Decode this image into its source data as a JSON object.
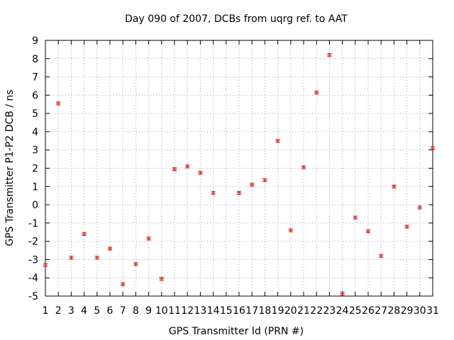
{
  "chart_data": {
    "type": "scatter",
    "title": "Day 090 of 2007, DCBs from uqrg ref. to AAT",
    "xlabel": "GPS Transmitter Id (PRN #)",
    "ylabel": "GPS Transmitter P1-P2 DCB / ns",
    "xlim": [
      1,
      31
    ],
    "ylim": [
      -5,
      9
    ],
    "x_ticks": [
      1,
      2,
      3,
      4,
      5,
      6,
      7,
      8,
      9,
      10,
      11,
      12,
      13,
      14,
      15,
      16,
      17,
      18,
      19,
      20,
      21,
      22,
      23,
      24,
      25,
      26,
      27,
      28,
      29,
      30,
      31
    ],
    "y_ticks": [
      -5,
      -4,
      -3,
      -2,
      -1,
      0,
      1,
      2,
      3,
      4,
      5,
      6,
      7,
      8,
      9
    ],
    "marker_color": "#cc0000",
    "error_bar": 0.08,
    "series": [
      {
        "name": "DCB",
        "points": [
          {
            "x": 1,
            "y": -3.3
          },
          {
            "x": 2,
            "y": 5.55
          },
          {
            "x": 3,
            "y": -2.9
          },
          {
            "x": 4,
            "y": -1.6
          },
          {
            "x": 5,
            "y": -2.9
          },
          {
            "x": 6,
            "y": -2.4
          },
          {
            "x": 7,
            "y": -4.35
          },
          {
            "x": 8,
            "y": -3.25
          },
          {
            "x": 9,
            "y": -1.85
          },
          {
            "x": 10,
            "y": -4.05
          },
          {
            "x": 11,
            "y": 1.95
          },
          {
            "x": 12,
            "y": 2.1
          },
          {
            "x": 13,
            "y": 1.75
          },
          {
            "x": 14,
            "y": 0.65
          },
          {
            "x": 16,
            "y": 0.65
          },
          {
            "x": 17,
            "y": 1.1
          },
          {
            "x": 18,
            "y": 1.35
          },
          {
            "x": 19,
            "y": 3.5
          },
          {
            "x": 20,
            "y": -1.4
          },
          {
            "x": 21,
            "y": 2.05
          },
          {
            "x": 22,
            "y": 6.15
          },
          {
            "x": 23,
            "y": 8.2
          },
          {
            "x": 24,
            "y": -4.85
          },
          {
            "x": 25,
            "y": -0.7
          },
          {
            "x": 26,
            "y": -1.45
          },
          {
            "x": 27,
            "y": -2.8
          },
          {
            "x": 28,
            "y": 1.0
          },
          {
            "x": 29,
            "y": -1.2
          },
          {
            "x": 30,
            "y": -0.15
          },
          {
            "x": 31,
            "y": 3.1
          }
        ]
      }
    ]
  }
}
